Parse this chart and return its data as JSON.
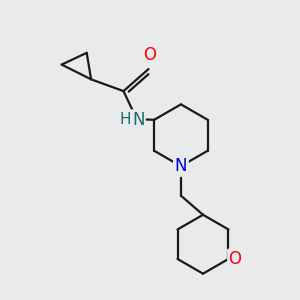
{
  "background_color": "#e8eaec",
  "bond_color": "#1a1a1a",
  "O_color": "#ff0000",
  "N_amide_color": "#1a6b6b",
  "N_pip_color": "#0000cc",
  "O_oxane_color": "#ff0000",
  "font_size": 11,
  "linewidth": 1.6,
  "xlim": [
    0,
    10
  ],
  "ylim": [
    0,
    10
  ]
}
